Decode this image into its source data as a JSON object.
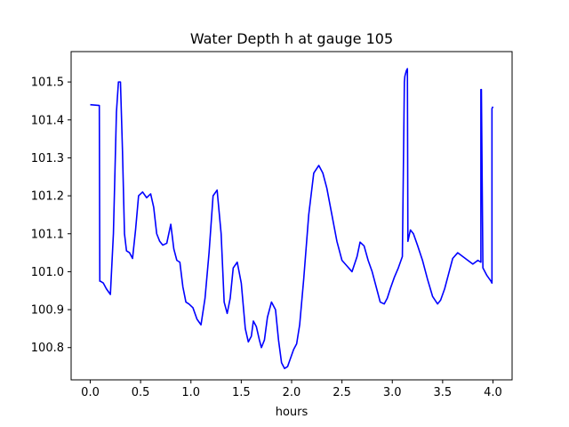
{
  "chart_data": {
    "type": "line",
    "title": "Water Depth h at gauge 105",
    "xlabel": "hours",
    "ylabel": "",
    "xlim": [
      -0.19,
      4.19
    ],
    "ylim": [
      100.715,
      101.58
    ],
    "x_ticks": [
      0.0,
      0.5,
      1.0,
      1.5,
      2.0,
      2.5,
      3.0,
      3.5,
      4.0
    ],
    "x_tick_labels": [
      "0.0",
      "0.5",
      "1.0",
      "1.5",
      "2.0",
      "2.5",
      "3.0",
      "3.5",
      "4.0"
    ],
    "y_ticks": [
      100.8,
      100.9,
      101.0,
      101.1,
      101.2,
      101.3,
      101.4,
      101.5
    ],
    "y_tick_labels": [
      "100.8",
      "100.9",
      "101.0",
      "101.1",
      "101.2",
      "101.3",
      "101.4",
      "101.5"
    ],
    "grid": false,
    "legend": "none",
    "series": [
      {
        "color": "#0000ff",
        "x": [
          0.0,
          0.09,
          0.095,
          0.1,
          0.13,
          0.16,
          0.2,
          0.23,
          0.26,
          0.28,
          0.3,
          0.32,
          0.34,
          0.36,
          0.39,
          0.42,
          0.45,
          0.48,
          0.52,
          0.56,
          0.6,
          0.63,
          0.66,
          0.69,
          0.72,
          0.76,
          0.8,
          0.83,
          0.86,
          0.89,
          0.92,
          0.95,
          0.98,
          1.02,
          1.06,
          1.1,
          1.14,
          1.18,
          1.22,
          1.26,
          1.3,
          1.33,
          1.36,
          1.39,
          1.42,
          1.46,
          1.5,
          1.54,
          1.57,
          1.6,
          1.62,
          1.65,
          1.68,
          1.7,
          1.73,
          1.76,
          1.8,
          1.84,
          1.87,
          1.9,
          1.93,
          1.96,
          1.98,
          2.0,
          2.02,
          2.05,
          2.08,
          2.12,
          2.17,
          2.22,
          2.27,
          2.31,
          2.35,
          2.4,
          2.45,
          2.5,
          2.55,
          2.6,
          2.65,
          2.68,
          2.72,
          2.76,
          2.8,
          2.85,
          2.88,
          2.92,
          2.95,
          2.98,
          3.02,
          3.06,
          3.1,
          3.12,
          3.125,
          3.14,
          3.15,
          3.155,
          3.18,
          3.21,
          3.25,
          3.3,
          3.35,
          3.4,
          3.45,
          3.48,
          3.52,
          3.56,
          3.6,
          3.65,
          3.7,
          3.75,
          3.8,
          3.85,
          3.88,
          3.88,
          3.885,
          3.9,
          3.94,
          3.98,
          3.99,
          3.99,
          4.0
        ],
        "y": [
          101.44,
          101.438,
          100.975,
          100.975,
          100.97,
          100.955,
          100.94,
          101.1,
          101.42,
          101.5,
          101.5,
          101.32,
          101.1,
          101.055,
          101.05,
          101.035,
          101.11,
          101.2,
          101.21,
          101.195,
          101.205,
          101.17,
          101.1,
          101.08,
          101.07,
          101.075,
          101.125,
          101.06,
          101.03,
          101.025,
          100.96,
          100.92,
          100.915,
          100.905,
          100.875,
          100.86,
          100.93,
          101.05,
          101.2,
          101.215,
          101.1,
          100.92,
          100.89,
          100.93,
          101.01,
          101.025,
          100.97,
          100.85,
          100.815,
          100.83,
          100.87,
          100.855,
          100.82,
          100.8,
          100.82,
          100.88,
          100.92,
          100.9,
          100.82,
          100.76,
          100.745,
          100.75,
          100.765,
          100.78,
          100.795,
          100.81,
          100.86,
          100.98,
          101.15,
          101.26,
          101.28,
          101.26,
          101.22,
          101.15,
          101.08,
          101.03,
          101.015,
          101.0,
          101.04,
          101.078,
          101.068,
          101.03,
          101.0,
          100.95,
          100.92,
          100.915,
          100.93,
          100.955,
          100.985,
          101.01,
          101.04,
          101.5,
          101.515,
          101.53,
          101.535,
          101.08,
          101.11,
          101.1,
          101.07,
          101.03,
          100.98,
          100.935,
          100.915,
          100.925,
          100.955,
          100.995,
          101.035,
          101.05,
          101.04,
          101.03,
          101.02,
          101.03,
          101.025,
          101.48,
          101.48,
          101.01,
          100.99,
          100.975,
          100.97,
          101.43,
          101.435
        ]
      }
    ]
  }
}
